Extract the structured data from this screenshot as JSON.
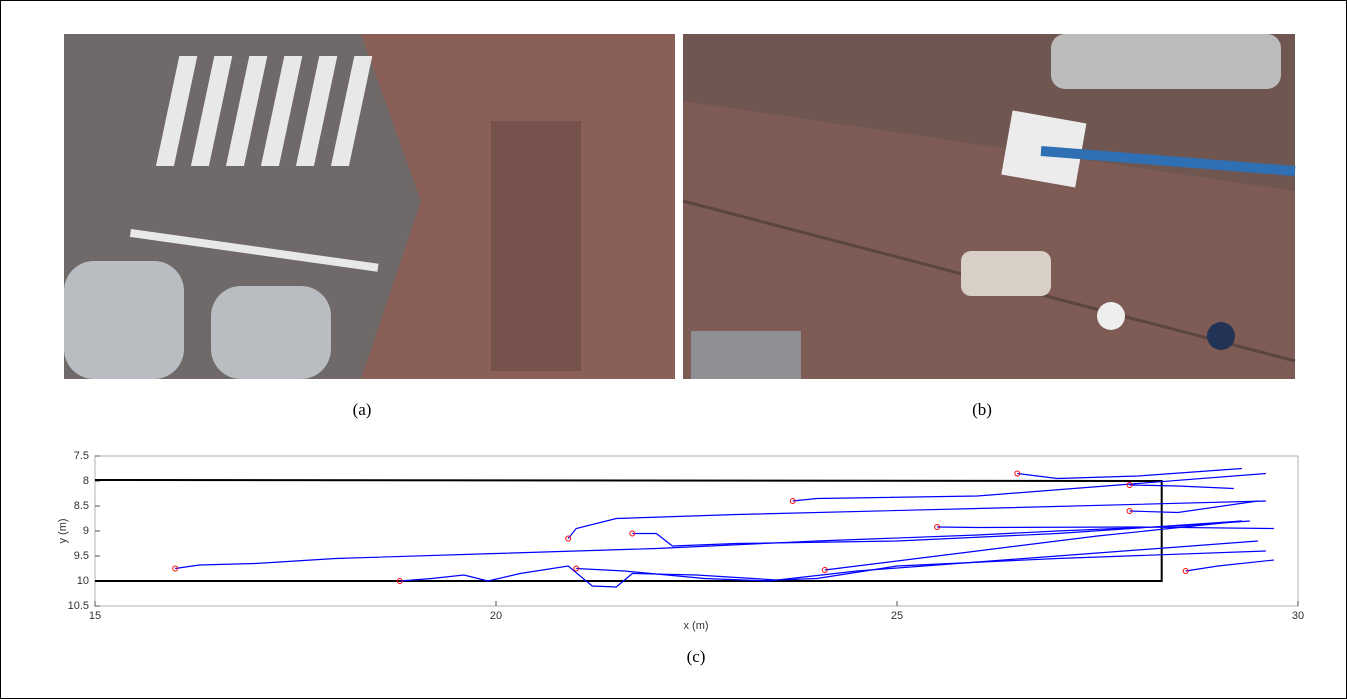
{
  "panels": [
    {
      "caption": "(a)"
    },
    {
      "caption": "(b)"
    }
  ],
  "chart_data": {
    "type": "line",
    "caption": "(c)",
    "x_label": "x (m)",
    "y_label": "y (m)",
    "xlim": [
      15,
      30
    ],
    "ylim": [
      10.5,
      7.5
    ],
    "xticks": [
      15,
      20,
      25,
      30
    ],
    "yticks": [
      7.5,
      8,
      8.5,
      9,
      9.5,
      10,
      10.5
    ],
    "marker_color": "#ff0000",
    "boundary": {
      "color": "#000000",
      "x": [
        15,
        28.3,
        28.3,
        15
      ],
      "y": [
        7.98,
        8,
        10,
        10
      ]
    },
    "series": [
      {
        "color": "#0000ff",
        "x": [
          16.0,
          16.3,
          17,
          18,
          20,
          22,
          24,
          26,
          27,
          28.5,
          29.4
        ],
        "y": [
          9.75,
          9.68,
          9.65,
          9.55,
          9.45,
          9.35,
          9.2,
          9.08,
          9.0,
          8.9,
          8.8
        ]
      },
      {
        "color": "#0000ff",
        "x": [
          18.8,
          19.2,
          19.6,
          19.9,
          20.3,
          20.9,
          21.2,
          21.5,
          21.7,
          22.5,
          23.5,
          24.0,
          25.0,
          27.0,
          29.6
        ],
        "y": [
          10.0,
          9.95,
          9.88,
          10.0,
          9.85,
          9.7,
          10.1,
          10.12,
          9.85,
          9.88,
          9.98,
          9.95,
          9.7,
          9.55,
          9.4
        ]
      },
      {
        "color": "#0000ff",
        "x": [
          21.0,
          21.6,
          22.6,
          23.4,
          24.5,
          27.0,
          29.5
        ],
        "y": [
          9.75,
          9.8,
          9.95,
          10.0,
          9.8,
          9.5,
          9.2
        ]
      },
      {
        "color": "#0000ff",
        "x": [
          20.9,
          21.0,
          21.5,
          23.0,
          26.0,
          29.6
        ],
        "y": [
          9.15,
          8.95,
          8.75,
          8.67,
          8.55,
          8.4
        ]
      },
      {
        "color": "#0000ff",
        "x": [
          21.7,
          22.0,
          22.2,
          23.0,
          25.0,
          27.0,
          29.3
        ],
        "y": [
          9.05,
          9.05,
          9.3,
          9.25,
          9.2,
          9.05,
          8.8
        ]
      },
      {
        "color": "#0000ff",
        "x": [
          23.7,
          24.0,
          26.0,
          29.6
        ],
        "y": [
          8.4,
          8.35,
          8.3,
          7.85
        ]
      },
      {
        "color": "#0000ff",
        "x": [
          24.1,
          24.5,
          26.0,
          27.5,
          29.3
        ],
        "y": [
          9.78,
          9.7,
          9.4,
          9.1,
          8.8
        ]
      },
      {
        "color": "#0000ff",
        "x": [
          25.5,
          26.0,
          28.0,
          29.7
        ],
        "y": [
          8.92,
          8.93,
          8.92,
          8.95
        ]
      },
      {
        "color": "#0000ff",
        "x": [
          26.5,
          27.0,
          28.0,
          29.3
        ],
        "y": [
          7.85,
          7.95,
          7.9,
          7.75
        ]
      },
      {
        "color": "#0000ff",
        "x": [
          27.9,
          28.5,
          29.2
        ],
        "y": [
          8.08,
          8.1,
          8.15
        ]
      },
      {
        "color": "#0000ff",
        "x": [
          27.9,
          28.5,
          29.5
        ],
        "y": [
          8.6,
          8.63,
          8.4
        ]
      },
      {
        "color": "#0000ff",
        "x": [
          28.6,
          29.0,
          29.7
        ],
        "y": [
          9.8,
          9.7,
          9.58
        ]
      }
    ]
  }
}
